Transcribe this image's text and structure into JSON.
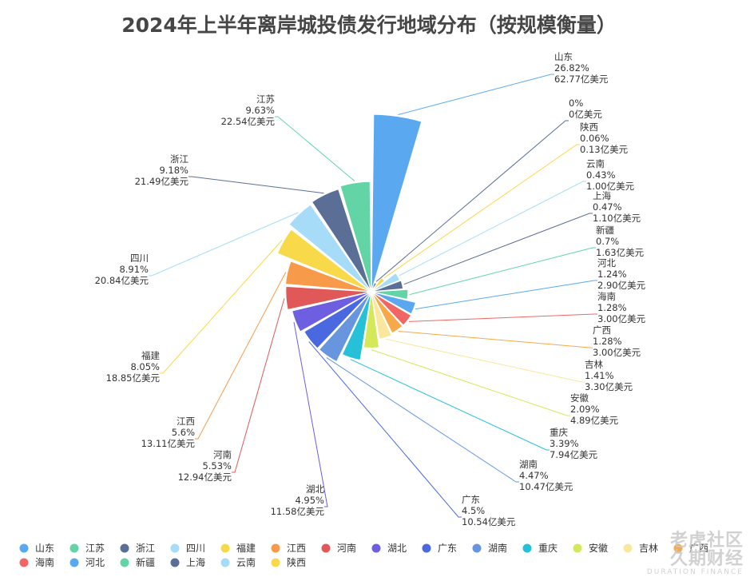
{
  "chart_data": {
    "type": "pie",
    "subtype": "rose",
    "title": "2024年上半年离岸城投债发行地域分布（按规模衡量）",
    "unit": "亿美元",
    "slices": [
      {
        "name": "山东",
        "pct": "26.82%",
        "amount": "62.77亿美元",
        "value": 62.77,
        "color": "#5aa9f0"
      },
      {
        "name": "",
        "pct": "0%",
        "amount": "0亿美元",
        "value": 0,
        "color": "#5a6e96"
      },
      {
        "name": "陕西",
        "pct": "0.06%",
        "amount": "0.13亿美元",
        "value": 0.13,
        "color": "#f8d94a"
      },
      {
        "name": "云南",
        "pct": "0.43%",
        "amount": "1.00亿美元",
        "value": 1.0,
        "color": "#a6dcf8"
      },
      {
        "name": "上海",
        "pct": "0.47%",
        "amount": "1.10亿美元",
        "value": 1.1,
        "color": "#5a6e96"
      },
      {
        "name": "新疆",
        "pct": "0.7%",
        "amount": "1.63亿美元",
        "value": 1.63,
        "color": "#62d4a6"
      },
      {
        "name": "河北",
        "pct": "1.24%",
        "amount": "2.90亿美元",
        "value": 2.9,
        "color": "#5aa9f0"
      },
      {
        "name": "海南",
        "pct": "1.28%",
        "amount": "3.00亿美元",
        "value": 3.0,
        "color": "#f06666"
      },
      {
        "name": "广西",
        "pct": "1.28%",
        "amount": "3.00亿美元",
        "value": 3.0,
        "color": "#f7a94a"
      },
      {
        "name": "吉林",
        "pct": "1.41%",
        "amount": "3.30亿美元",
        "value": 3.3,
        "color": "#fae79d"
      },
      {
        "name": "安徽",
        "pct": "2.09%",
        "amount": "4.89亿美元",
        "value": 4.89,
        "color": "#d4e85a"
      },
      {
        "name": "重庆",
        "pct": "3.39%",
        "amount": "7.94亿美元",
        "value": 7.94,
        "color": "#26c0d8"
      },
      {
        "name": "湖南",
        "pct": "4.47%",
        "amount": "10.47亿美元",
        "value": 10.47,
        "color": "#6796de"
      },
      {
        "name": "广东",
        "pct": "4.5%",
        "amount": "10.54亿美元",
        "value": 10.54,
        "color": "#4a68e0"
      },
      {
        "name": "湖北",
        "pct": "4.95%",
        "amount": "11.58亿美元",
        "value": 11.58,
        "color": "#6e5ee0"
      },
      {
        "name": "河南",
        "pct": "5.53%",
        "amount": "12.94亿美元",
        "value": 12.94,
        "color": "#e05858"
      },
      {
        "name": "江西",
        "pct": "5.6%",
        "amount": "13.11亿美元",
        "value": 13.11,
        "color": "#f79a4a"
      },
      {
        "name": "福建",
        "pct": "8.05%",
        "amount": "18.85亿美元",
        "value": 18.85,
        "color": "#f8d94a"
      },
      {
        "name": "四川",
        "pct": "8.91%",
        "amount": "20.84亿美元",
        "value": 20.84,
        "color": "#a6dcf8"
      },
      {
        "name": "浙江",
        "pct": "9.18%",
        "amount": "21.49亿美元",
        "value": 21.49,
        "color": "#5a6e96"
      },
      {
        "name": "江苏",
        "pct": "9.63%",
        "amount": "22.54亿美元",
        "value": 22.54,
        "color": "#62d4a6"
      }
    ],
    "legend": [
      {
        "name": "山东",
        "color": "#5aa9f0"
      },
      {
        "name": "江苏",
        "color": "#62d4a6"
      },
      {
        "name": "浙江",
        "color": "#5a6e96"
      },
      {
        "name": "四川",
        "color": "#a6dcf8"
      },
      {
        "name": "福建",
        "color": "#f8d94a"
      },
      {
        "name": "江西",
        "color": "#f79a4a"
      },
      {
        "name": "河南",
        "color": "#e05858"
      },
      {
        "name": "湖北",
        "color": "#6e5ee0"
      },
      {
        "name": "广东",
        "color": "#4a68e0"
      },
      {
        "name": "湖南",
        "color": "#6796de"
      },
      {
        "name": "重庆",
        "color": "#26c0d8"
      },
      {
        "name": "安徽",
        "color": "#d4e85a"
      },
      {
        "name": "吉林",
        "color": "#fae79d"
      },
      {
        "name": "广西",
        "color": "#f7a94a"
      },
      {
        "name": "海南",
        "color": "#f06666"
      },
      {
        "name": "河北",
        "color": "#5aa9f0"
      },
      {
        "name": "新疆",
        "color": "#62d4a6"
      },
      {
        "name": "上海",
        "color": "#5a6e96"
      },
      {
        "name": "云南",
        "color": "#a6dcf8"
      },
      {
        "name": "陕西",
        "color": "#f8d94a"
      }
    ]
  },
  "watermark": {
    "line1": "老虎社区",
    "line2": "久期财经",
    "line3": "DURATION FINANCE"
  }
}
